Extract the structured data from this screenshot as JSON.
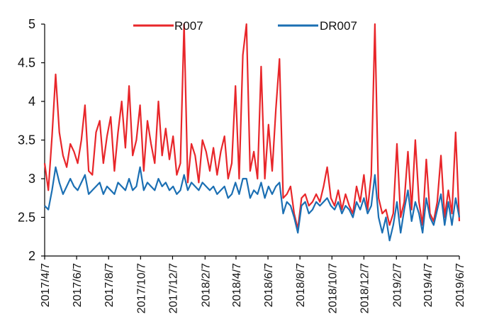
{
  "chart_data": {
    "type": "line",
    "title": "",
    "xlabel": "",
    "ylabel": "",
    "ylim": [
      2,
      5
    ],
    "yticks": [
      "2",
      "2.5",
      "3",
      "3.5",
      "4",
      "4.5",
      "5"
    ],
    "xlim": [
      "2017-04-07",
      "2019-06-07"
    ],
    "xticks": [
      "2017/4/7",
      "2017/6/7",
      "2017/8/7",
      "2017/10/7",
      "2017/12/7",
      "2018/2/7",
      "2018/4/7",
      "2018/6/7",
      "2018/8/7",
      "2018/10/7",
      "2018/12/7",
      "2019/2/7",
      "2019/4/7",
      "2019/6/7"
    ],
    "legend": "top",
    "grid": false,
    "series": [
      {
        "name": "R007",
        "color": "#e8262a",
        "x": [
          "2017-04-07",
          "2017-04-14",
          "2017-04-21",
          "2017-04-28",
          "2017-05-05",
          "2017-05-12",
          "2017-05-19",
          "2017-05-26",
          "2017-06-02",
          "2017-06-09",
          "2017-06-16",
          "2017-06-23",
          "2017-06-30",
          "2017-07-07",
          "2017-07-14",
          "2017-07-21",
          "2017-07-28",
          "2017-08-04",
          "2017-08-11",
          "2017-08-18",
          "2017-08-25",
          "2017-09-01",
          "2017-09-08",
          "2017-09-15",
          "2017-09-22",
          "2017-09-29",
          "2017-10-06",
          "2017-10-13",
          "2017-10-20",
          "2017-10-27",
          "2017-11-03",
          "2017-11-10",
          "2017-11-17",
          "2017-11-24",
          "2017-12-01",
          "2017-12-08",
          "2017-12-15",
          "2017-12-22",
          "2017-12-29",
          "2018-01-05",
          "2018-01-12",
          "2018-01-19",
          "2018-01-26",
          "2018-02-02",
          "2018-02-09",
          "2018-02-16",
          "2018-02-23",
          "2018-03-02",
          "2018-03-09",
          "2018-03-16",
          "2018-03-23",
          "2018-03-30",
          "2018-04-06",
          "2018-04-13",
          "2018-04-20",
          "2018-04-27",
          "2018-05-04",
          "2018-05-11",
          "2018-05-18",
          "2018-05-25",
          "2018-06-01",
          "2018-06-08",
          "2018-06-15",
          "2018-06-22",
          "2018-06-29",
          "2018-07-06",
          "2018-07-13",
          "2018-07-20",
          "2018-07-27",
          "2018-08-03",
          "2018-08-10",
          "2018-08-17",
          "2018-08-24",
          "2018-08-31",
          "2018-09-07",
          "2018-09-14",
          "2018-09-21",
          "2018-09-28",
          "2018-10-05",
          "2018-10-12",
          "2018-10-19",
          "2018-10-26",
          "2018-11-02",
          "2018-11-09",
          "2018-11-16",
          "2018-11-23",
          "2018-11-30",
          "2018-12-07",
          "2018-12-14",
          "2018-12-21",
          "2018-12-28",
          "2019-01-04",
          "2019-01-11",
          "2019-01-18",
          "2019-01-25",
          "2019-02-01",
          "2019-02-08",
          "2019-02-15",
          "2019-02-22",
          "2019-03-01",
          "2019-03-08",
          "2019-03-15",
          "2019-03-22",
          "2019-03-29",
          "2019-04-05",
          "2019-04-12",
          "2019-04-19",
          "2019-04-26",
          "2019-05-03",
          "2019-05-10",
          "2019-05-17",
          "2019-05-24",
          "2019-05-31",
          "2019-06-07"
        ],
        "values": [
          3.2,
          2.85,
          3.55,
          4.35,
          3.6,
          3.3,
          3.15,
          3.45,
          3.35,
          3.2,
          3.5,
          3.95,
          3.1,
          3.05,
          3.6,
          3.75,
          3.2,
          3.55,
          3.8,
          3.1,
          3.6,
          4.0,
          3.4,
          4.2,
          3.3,
          3.5,
          3.95,
          3.1,
          3.75,
          3.45,
          3.2,
          4.0,
          3.3,
          3.65,
          3.25,
          3.55,
          3.05,
          3.2,
          5.0,
          2.95,
          3.45,
          3.3,
          2.95,
          3.5,
          3.35,
          3.1,
          3.4,
          3.05,
          3.35,
          3.55,
          3.0,
          3.2,
          4.2,
          3.0,
          4.6,
          5.0,
          3.1,
          3.35,
          3.0,
          4.45,
          3.0,
          3.7,
          3.1,
          3.9,
          4.55,
          2.75,
          2.8,
          2.9,
          2.55,
          2.35,
          2.75,
          2.8,
          2.65,
          2.7,
          2.8,
          2.7,
          2.9,
          3.15,
          2.75,
          2.65,
          2.85,
          2.6,
          2.8,
          2.65,
          2.55,
          2.9,
          2.7,
          3.05,
          2.6,
          3.05,
          5.0,
          2.75,
          2.55,
          2.6,
          2.4,
          2.55,
          3.45,
          2.5,
          2.7,
          3.35,
          2.6,
          3.5,
          2.7,
          2.4,
          3.25,
          2.55,
          2.45,
          2.7,
          3.3,
          2.5,
          2.85,
          2.55,
          3.6,
          2.45
        ]
      },
      {
        "name": "DR007",
        "color": "#1b6fb3",
        "x": [
          "2017-04-07",
          "2017-04-14",
          "2017-04-21",
          "2017-04-28",
          "2017-05-05",
          "2017-05-12",
          "2017-05-19",
          "2017-05-26",
          "2017-06-02",
          "2017-06-09",
          "2017-06-16",
          "2017-06-23",
          "2017-06-30",
          "2017-07-07",
          "2017-07-14",
          "2017-07-21",
          "2017-07-28",
          "2017-08-04",
          "2017-08-11",
          "2017-08-18",
          "2017-08-25",
          "2017-09-01",
          "2017-09-08",
          "2017-09-15",
          "2017-09-22",
          "2017-09-29",
          "2017-10-06",
          "2017-10-13",
          "2017-10-20",
          "2017-10-27",
          "2017-11-03",
          "2017-11-10",
          "2017-11-17",
          "2017-11-24",
          "2017-12-01",
          "2017-12-08",
          "2017-12-15",
          "2017-12-22",
          "2017-12-29",
          "2018-01-05",
          "2018-01-12",
          "2018-01-19",
          "2018-01-26",
          "2018-02-02",
          "2018-02-09",
          "2018-02-16",
          "2018-02-23",
          "2018-03-02",
          "2018-03-09",
          "2018-03-16",
          "2018-03-23",
          "2018-03-30",
          "2018-04-06",
          "2018-04-13",
          "2018-04-20",
          "2018-04-27",
          "2018-05-04",
          "2018-05-11",
          "2018-05-18",
          "2018-05-25",
          "2018-06-01",
          "2018-06-08",
          "2018-06-15",
          "2018-06-22",
          "2018-06-29",
          "2018-07-06",
          "2018-07-13",
          "2018-07-20",
          "2018-07-27",
          "2018-08-03",
          "2018-08-10",
          "2018-08-17",
          "2018-08-24",
          "2018-08-31",
          "2018-09-07",
          "2018-09-14",
          "2018-09-21",
          "2018-09-28",
          "2018-10-05",
          "2018-10-12",
          "2018-10-19",
          "2018-10-26",
          "2018-11-02",
          "2018-11-09",
          "2018-11-16",
          "2018-11-23",
          "2018-11-30",
          "2018-12-07",
          "2018-12-14",
          "2018-12-21",
          "2018-12-28",
          "2019-01-04",
          "2019-01-11",
          "2019-01-18",
          "2019-01-25",
          "2019-02-01",
          "2019-02-08",
          "2019-02-15",
          "2019-02-22",
          "2019-03-01",
          "2019-03-08",
          "2019-03-15",
          "2019-03-22",
          "2019-03-29",
          "2019-04-05",
          "2019-04-12",
          "2019-04-19",
          "2019-04-26",
          "2019-05-03",
          "2019-05-10",
          "2019-05-17",
          "2019-05-24",
          "2019-05-31",
          "2019-06-07"
        ],
        "values": [
          2.65,
          2.6,
          2.85,
          3.15,
          2.95,
          2.8,
          2.9,
          3.0,
          2.9,
          2.85,
          2.95,
          3.05,
          2.8,
          2.85,
          2.9,
          2.95,
          2.8,
          2.9,
          2.85,
          2.8,
          2.95,
          2.9,
          2.85,
          3.0,
          2.85,
          2.9,
          3.15,
          2.85,
          2.95,
          2.9,
          2.85,
          3.0,
          2.9,
          2.95,
          2.85,
          2.9,
          2.8,
          2.85,
          3.05,
          2.85,
          2.95,
          2.9,
          2.85,
          2.95,
          2.9,
          2.85,
          2.9,
          2.8,
          2.85,
          2.9,
          2.75,
          2.8,
          2.95,
          2.8,
          3.0,
          3.0,
          2.75,
          2.85,
          2.8,
          2.95,
          2.75,
          2.9,
          2.8,
          2.9,
          2.95,
          2.55,
          2.7,
          2.65,
          2.5,
          2.3,
          2.65,
          2.7,
          2.55,
          2.6,
          2.7,
          2.65,
          2.7,
          2.75,
          2.65,
          2.6,
          2.7,
          2.55,
          2.65,
          2.6,
          2.5,
          2.7,
          2.6,
          2.75,
          2.55,
          2.65,
          3.05,
          2.5,
          2.3,
          2.5,
          2.2,
          2.4,
          2.7,
          2.3,
          2.6,
          2.85,
          2.45,
          2.7,
          2.55,
          2.3,
          2.75,
          2.5,
          2.4,
          2.6,
          2.8,
          2.4,
          2.7,
          2.4,
          2.75,
          2.5
        ]
      }
    ]
  }
}
